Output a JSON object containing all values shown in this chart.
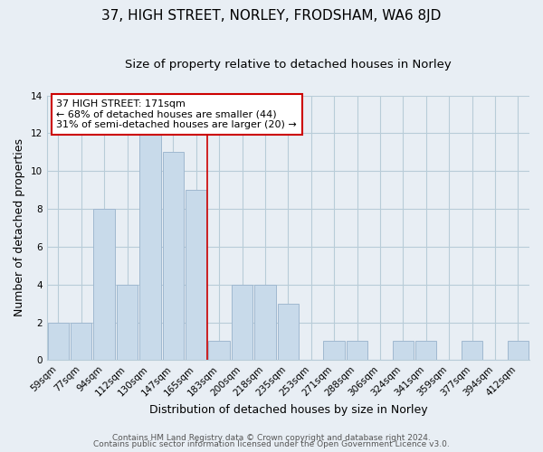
{
  "title": "37, HIGH STREET, NORLEY, FRODSHAM, WA6 8JD",
  "subtitle": "Size of property relative to detached houses in Norley",
  "xlabel": "Distribution of detached houses by size in Norley",
  "ylabel": "Number of detached properties",
  "categories": [
    "59sqm",
    "77sqm",
    "94sqm",
    "112sqm",
    "130sqm",
    "147sqm",
    "165sqm",
    "183sqm",
    "200sqm",
    "218sqm",
    "235sqm",
    "253sqm",
    "271sqm",
    "288sqm",
    "306sqm",
    "324sqm",
    "341sqm",
    "359sqm",
    "377sqm",
    "394sqm",
    "412sqm"
  ],
  "values": [
    2,
    2,
    8,
    4,
    12,
    11,
    9,
    1,
    4,
    4,
    3,
    0,
    1,
    1,
    0,
    1,
    1,
    0,
    1,
    0,
    1
  ],
  "bar_fill_color": "#c8daea",
  "bar_edge_color": "#a0b8d0",
  "highlight_line_color": "#cc0000",
  "annotation_line1": "37 HIGH STREET: 171sqm",
  "annotation_line2": "← 68% of detached houses are smaller (44)",
  "annotation_line3": "31% of semi-detached houses are larger (20) →",
  "annotation_box_facecolor": "#ffffff",
  "annotation_box_edgecolor": "#cc0000",
  "ylim": [
    0,
    14
  ],
  "yticks": [
    0,
    2,
    4,
    6,
    8,
    10,
    12,
    14
  ],
  "footer_line1": "Contains HM Land Registry data © Crown copyright and database right 2024.",
  "footer_line2": "Contains public sector information licensed under the Open Government Licence v3.0.",
  "bg_color": "#e8eef4",
  "plot_bg_color": "#e8eef4",
  "grid_color": "#b8ccd8",
  "title_fontsize": 11,
  "subtitle_fontsize": 9.5,
  "axis_label_fontsize": 9,
  "tick_fontsize": 7.5,
  "annotation_fontsize": 8,
  "footer_fontsize": 6.5,
  "highlight_line_bar_index": 6
}
